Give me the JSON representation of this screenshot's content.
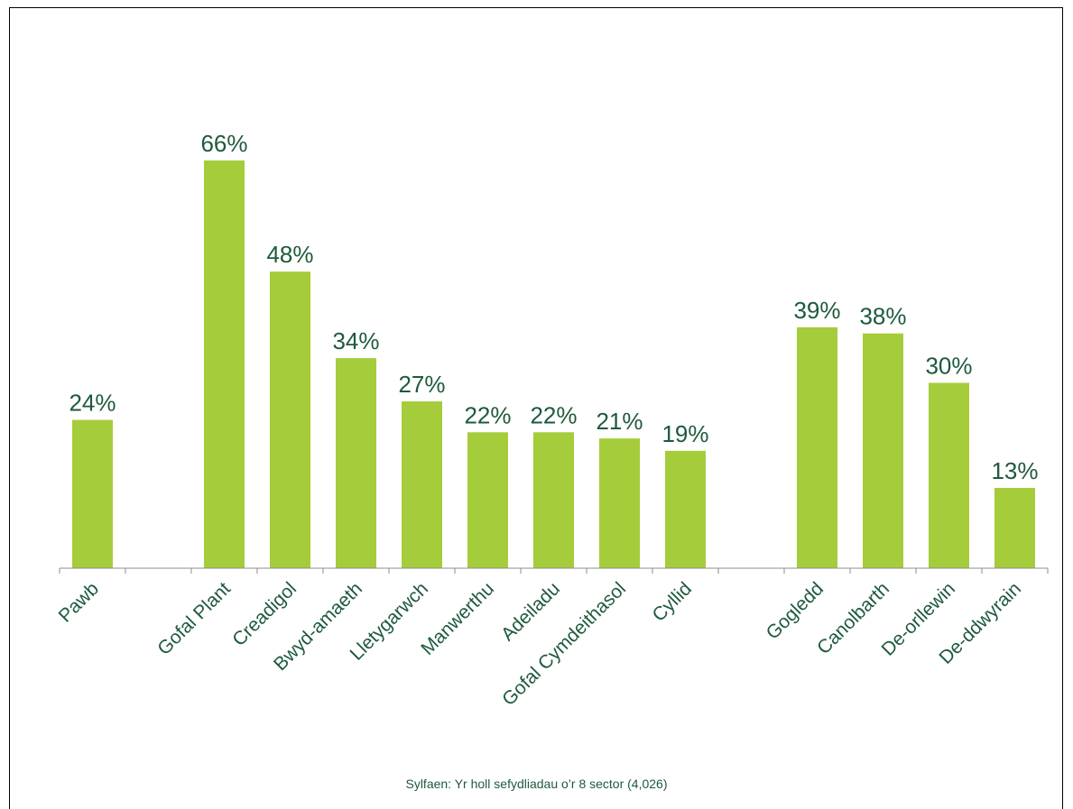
{
  "chart_data": {
    "type": "bar",
    "categories": [
      "Pawb",
      "",
      "Gofal Plant",
      "Creadigol",
      "Bwyd-amaeth",
      "Lletygarwch",
      "Manwerthu",
      "Adeiladu",
      "Gofal Cymdeithasol",
      "Cyllid",
      "",
      "Gogledd",
      "Canolbarth",
      "De-orllewin",
      "De-ddwyrain"
    ],
    "values": [
      24,
      null,
      66,
      48,
      34,
      27,
      22,
      22,
      21,
      19,
      null,
      39,
      38,
      30,
      13
    ],
    "labels": [
      "24%",
      "",
      "66%",
      "48%",
      "34%",
      "27%",
      "22%",
      "22%",
      "21%",
      "19%",
      "",
      "39%",
      "38%",
      "30%",
      "13%"
    ],
    "unit": "%",
    "ylim": [
      0,
      70
    ],
    "grid": false,
    "legend": "none",
    "bar_color": "#a5cc3a",
    "text_color": "#1e5a3c",
    "axis_color": "#8c8c8c"
  },
  "footnote": "Sylfaen: Yr holl sefydliadau o’r 8 sector (4,026)"
}
